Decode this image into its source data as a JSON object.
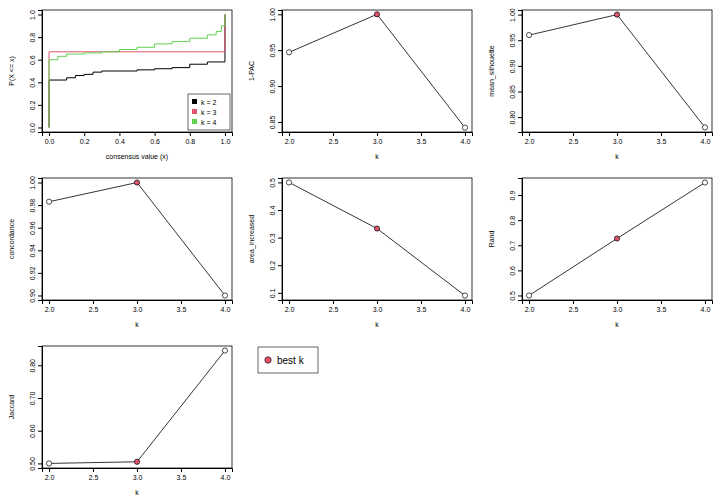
{
  "chart_data": [
    {
      "type": "step",
      "x_label": "consensus value (x)",
      "y_label": "P(X <= x)",
      "xlim": [
        -0.04,
        1.04
      ],
      "xticks": [
        {
          "value": 0,
          "label": "0.0"
        },
        0.2,
        0.4,
        0.6,
        0.8,
        {
          "value": 1,
          "label": "1.0"
        }
      ],
      "ylim": [
        -0.04,
        1.04
      ],
      "yticks": [
        {
          "value": 0,
          "label": "0.0"
        },
        0.2,
        0.4,
        0.6,
        0.8,
        {
          "value": 1,
          "label": "1.0"
        }
      ],
      "legend": "bottom-right",
      "series": [
        {
          "name": "k = 2",
          "color": "#000000",
          "x": [
            0,
            0,
            0.1,
            0.15,
            0.2,
            0.25,
            0.3,
            0.5,
            0.6,
            0.7,
            0.8,
            0.9,
            0.97,
            1.0
          ],
          "values": [
            0,
            0.42,
            0.44,
            0.46,
            0.47,
            0.49,
            0.5,
            0.51,
            0.52,
            0.53,
            0.56,
            0.58,
            0.58,
            1.0
          ]
        },
        {
          "name": "k = 3",
          "color": "#DF536B",
          "x": [
            0,
            0,
            1.0
          ],
          "values": [
            0,
            0.67,
            1.0
          ]
        },
        {
          "name": "k = 4",
          "color": "#61D04F",
          "x": [
            0,
            0,
            0.05,
            0.1,
            0.2,
            0.3,
            0.4,
            0.5,
            0.6,
            0.7,
            0.8,
            0.9,
            0.95,
            0.98,
            1.0
          ],
          "values": [
            0,
            0.6,
            0.63,
            0.65,
            0.66,
            0.67,
            0.69,
            0.71,
            0.74,
            0.76,
            0.79,
            0.82,
            0.85,
            0.9,
            1.0
          ]
        }
      ]
    },
    {
      "type": "line",
      "x_label": "k",
      "y_label": "1-PAC",
      "color": "#000000",
      "marker": "circle",
      "best_k": 3,
      "x": [
        2,
        3,
        4
      ],
      "values": [
        0.947,
        1.0,
        0.842
      ],
      "xlim": [
        1.92,
        4.08
      ],
      "xticks": [
        {
          "value": 2,
          "label": "2.0"
        },
        2.5,
        {
          "value": 3,
          "label": "3.0"
        },
        3.5,
        {
          "value": 4,
          "label": "4.0"
        }
      ],
      "ylim": [
        0.836,
        1.006
      ],
      "yticks": [
        0.85,
        {
          "value": 0.9,
          "label": "0.90"
        },
        0.95,
        {
          "value": 1,
          "label": "1.00"
        }
      ]
    },
    {
      "type": "line",
      "x_label": "k",
      "y_label": "mean_silhouette",
      "color": "#000000",
      "marker": "circle",
      "best_k": 3,
      "x": [
        2,
        3,
        4
      ],
      "values": [
        0.96,
        1.0,
        0.78
      ],
      "xlim": [
        1.92,
        4.08
      ],
      "xticks": [
        {
          "value": 2,
          "label": "2.0"
        },
        2.5,
        {
          "value": 3,
          "label": "3.0"
        },
        3.5,
        {
          "value": 4,
          "label": "4.0"
        }
      ],
      "ylim": [
        0.771,
        1.009
      ],
      "yticks": [
        {
          "value": 0.8,
          "label": "0.80"
        },
        0.85,
        {
          "value": 0.9,
          "label": "0.90"
        },
        0.95,
        {
          "value": 1,
          "label": "1.00"
        }
      ]
    },
    {
      "type": "line",
      "x_label": "k",
      "y_label": "concordance",
      "color": "#000000",
      "marker": "circle",
      "best_k": 3,
      "x": [
        2,
        3,
        4
      ],
      "values": [
        0.983,
        1.0,
        0.9
      ],
      "xlim": [
        1.92,
        4.08
      ],
      "xticks": [
        {
          "value": 2,
          "label": "2.0"
        },
        2.5,
        {
          "value": 3,
          "label": "3.0"
        },
        3.5,
        {
          "value": 4,
          "label": "4.0"
        }
      ],
      "ylim": [
        0.896,
        1.004
      ],
      "yticks": [
        {
          "value": 0.9,
          "label": "0.90"
        },
        0.92,
        0.94,
        0.96,
        0.98,
        {
          "value": 1,
          "label": "1.00"
        }
      ]
    },
    {
      "type": "line",
      "x_label": "k",
      "y_label": "area_increased",
      "color": "#000000",
      "marker": "circle",
      "best_k": 3,
      "x": [
        2,
        3,
        4
      ],
      "values": [
        0.5,
        0.333,
        0.09
      ],
      "xlim": [
        1.92,
        4.08
      ],
      "xticks": [
        {
          "value": 2,
          "label": "2.0"
        },
        2.5,
        {
          "value": 3,
          "label": "3.0"
        },
        3.5,
        {
          "value": 4,
          "label": "4.0"
        }
      ],
      "ylim": [
        0.074,
        0.516
      ],
      "yticks": [
        0.1,
        0.2,
        0.3,
        0.4,
        0.5
      ]
    },
    {
      "type": "line",
      "x_label": "k",
      "y_label": "Rand",
      "color": "#000000",
      "marker": "circle",
      "best_k": 3,
      "x": [
        2,
        3,
        4
      ],
      "values": [
        0.5,
        0.727,
        0.95
      ],
      "xlim": [
        1.92,
        4.08
      ],
      "xticks": [
        {
          "value": 2,
          "label": "2.0"
        },
        2.5,
        {
          "value": 3,
          "label": "3.0"
        },
        3.5,
        {
          "value": 4,
          "label": "4.0"
        }
      ],
      "ylim": [
        0.482,
        0.968
      ],
      "yticks": [
        0.5,
        0.6,
        0.7,
        0.8,
        0.9
      ]
    },
    {
      "type": "line",
      "x_label": "k",
      "y_label": "Jaccard",
      "color": "#000000",
      "marker": "circle",
      "best_k": 3,
      "x": [
        2,
        3,
        4
      ],
      "values": [
        0.5,
        0.505,
        0.845
      ],
      "xlim": [
        1.92,
        4.08
      ],
      "xticks": [
        {
          "value": 2,
          "label": "2.0"
        },
        2.5,
        {
          "value": 3,
          "label": "3.0"
        },
        3.5,
        {
          "value": 4,
          "label": "4.0"
        }
      ],
      "ylim": [
        0.486,
        0.859
      ],
      "yticks": [
        {
          "value": 0.5,
          "label": "0.50"
        },
        {
          "value": 0.6,
          "label": "0.60"
        },
        {
          "value": 0.7,
          "label": "0.70"
        },
        {
          "value": 0.8,
          "label": "0.80"
        }
      ]
    },
    {
      "type": "legend",
      "labels": [
        "best k"
      ],
      "color": "#DF536B"
    }
  ]
}
